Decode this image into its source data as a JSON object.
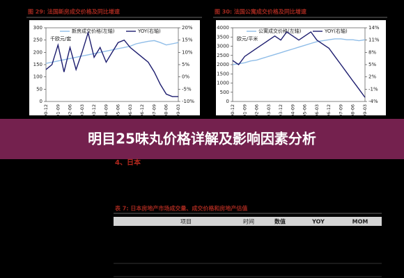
{
  "chart_data": [
    {
      "type": "line",
      "title": "图 29: 法国新房成交价格及同比增速",
      "annotation": "千欧元/套",
      "categories": [
        "00-12",
        null,
        "01-09",
        null,
        "02-06",
        null,
        "03-03",
        null,
        "03-12",
        null,
        "04-09",
        null,
        "05-06",
        null,
        "06-03",
        null,
        "06-12",
        null,
        "07-09",
        null,
        "08-06",
        null,
        "09-03"
      ],
      "series": [
        {
          "name": "新房成交价格(左轴)",
          "color": "#8fbde8",
          "values": [
            155,
            160,
            165,
            170,
            175,
            180,
            185,
            190,
            195,
            200,
            205,
            210,
            215,
            220,
            225,
            235,
            240,
            245,
            248,
            240,
            230,
            235,
            240
          ]
        },
        {
          "name": "YOY(右轴)",
          "color": "#1c1c6e",
          "axis": "y2",
          "values": [
            3,
            5,
            13,
            2,
            12,
            3,
            10,
            18,
            8,
            12,
            6,
            10,
            14,
            15,
            12,
            10,
            8,
            6,
            2,
            -3,
            -7,
            -8,
            -8
          ]
        }
      ],
      "ylim": [
        0,
        300
      ],
      "yticks": [
        0,
        50,
        100,
        150,
        200,
        250,
        300
      ],
      "y2lim": [
        -10,
        20
      ],
      "y2ticks": [
        {
          "value": -10,
          "label": "-10%"
        },
        {
          "value": -5,
          "label": "-5%"
        },
        {
          "value": 0,
          "label": "0%"
        },
        {
          "value": 5,
          "label": "5%"
        },
        {
          "value": 10,
          "label": "10%"
        },
        {
          "value": 15,
          "label": "15%"
        },
        {
          "value": 20,
          "label": "20%"
        }
      ]
    },
    {
      "type": "line",
      "title": "图 30: 法国公寓成交价格及同比增速",
      "annotation": "欧元/平米",
      "categories": [
        "00-12",
        null,
        "01-09",
        null,
        "02-06",
        null,
        "03-03",
        null,
        "03-12",
        null,
        "04-09",
        null,
        "05-06",
        null,
        "06-03",
        null,
        "06-12",
        null,
        "07-09",
        null,
        "08-06",
        null,
        "09-03"
      ],
      "series": [
        {
          "name": "公寓成交价格(左轴)",
          "color": "#8fbde8",
          "values": [
            2000,
            2050,
            2100,
            2200,
            2250,
            2350,
            2450,
            2550,
            2650,
            2750,
            2850,
            2950,
            3050,
            3150,
            3250,
            3300,
            3350,
            3400,
            3400,
            3350,
            3350,
            3300,
            3350
          ]
        },
        {
          "name": "YOY(右轴)",
          "color": "#1c1c6e",
          "axis": "y2",
          "values": [
            6,
            5,
            7,
            8,
            9,
            10,
            11,
            12,
            11,
            13,
            12,
            11,
            12,
            13,
            11,
            10,
            9,
            7,
            5,
            3,
            1,
            -1,
            -3
          ]
        }
      ],
      "ylim": [
        0,
        4000
      ],
      "yticks": [
        0,
        500,
        1000,
        1500,
        2000,
        2500,
        3000,
        3500,
        4000
      ],
      "y2lim": [
        -4,
        14
      ],
      "y2ticks": [
        {
          "value": -4,
          "label": "-4%"
        },
        {
          "value": -1,
          "label": "-1%"
        },
        {
          "value": 2,
          "label": "2%"
        },
        {
          "value": 5,
          "label": "5%"
        },
        {
          "value": 8,
          "label": "8%"
        },
        {
          "value": 11,
          "label": "11%"
        },
        {
          "value": 14,
          "label": "14%"
        }
      ]
    }
  ],
  "banner": {
    "title": "明目25味丸价格详解及影响因素分析"
  },
  "section": {
    "heading": "4、日本"
  },
  "table": {
    "title": "表 7: 日本房地产市场成交量、成交价格和房地产估值",
    "header": [
      "项目",
      "时间",
      "数值",
      "YOY",
      "MOM"
    ]
  }
}
